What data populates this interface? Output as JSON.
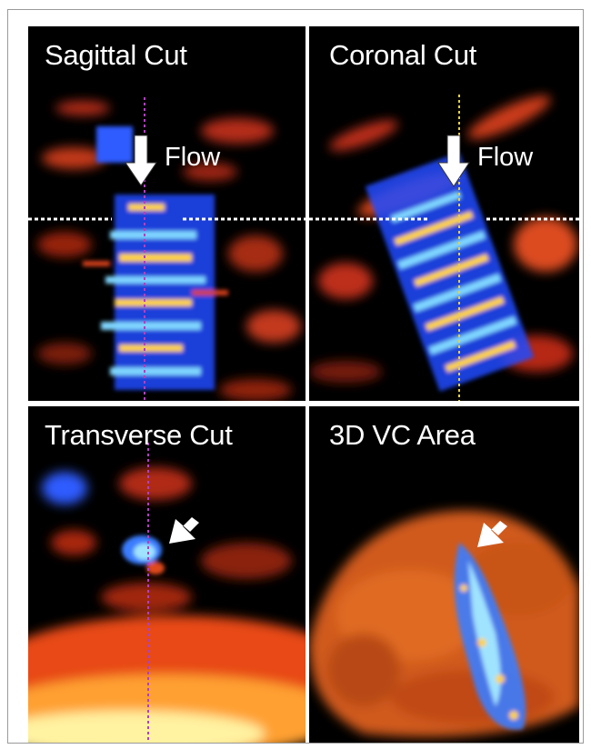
{
  "panels": [
    {
      "id": "sagittal",
      "label": "Sagittal Cut",
      "annotation": "Flow"
    },
    {
      "id": "coronal",
      "label": "Coronal Cut",
      "annotation": "Flow"
    },
    {
      "id": "transverse",
      "label": "Transverse Cut"
    },
    {
      "id": "vc-area",
      "label": "3D VC Area"
    }
  ],
  "colors": {
    "background": "#000000",
    "tissue": "#d8401a",
    "flow_blue": "#2f6dff",
    "flow_cyan": "#7fd6ff",
    "flow_yellow": "#ffd23a",
    "guide_magenta": "#b040c0",
    "guide_yellow": "#e8d040",
    "guide_white": "#ffffff"
  },
  "icons": [
    "down-arrow-icon",
    "diagonal-arrow-icon"
  ]
}
